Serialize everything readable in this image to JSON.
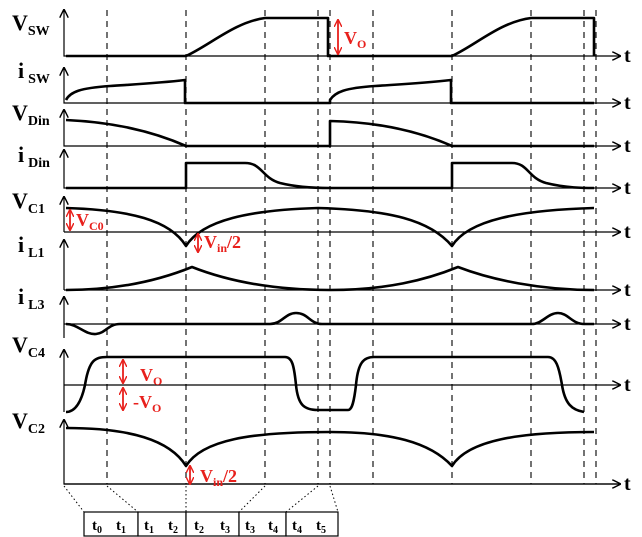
{
  "signals": [
    {
      "main": "V",
      "sub": "SW"
    },
    {
      "main": "i",
      "sub": "SW"
    },
    {
      "main": "V",
      "sub": "Din"
    },
    {
      "main": "i",
      "sub": "Din"
    },
    {
      "main": "V",
      "sub": "C1"
    },
    {
      "main": "i",
      "sub": "L1"
    },
    {
      "main": "i",
      "sub": "L3"
    },
    {
      "main": "V",
      "sub": "C4"
    },
    {
      "main": "V",
      "sub": "C2"
    }
  ],
  "time_axis_label": "t",
  "annotations": {
    "vo_sw": {
      "main": "V",
      "sub": "O"
    },
    "vc0": {
      "main": "V",
      "sub": "C0"
    },
    "vin2_c1": {
      "main": "V",
      "sub": "in",
      "tail": "/2"
    },
    "vo_c4": {
      "main": "V",
      "sub": "O"
    },
    "neg_vo_c4": {
      "main": "-V",
      "sub": "O"
    },
    "vin2_c2": {
      "main": "V",
      "sub": "in",
      "tail": "/2"
    }
  },
  "intervals": [
    {
      "main": "t",
      "sub": "0"
    },
    {
      "main": "t",
      "sub": "1"
    },
    {
      "main": "t",
      "sub": "1"
    },
    {
      "main": "t",
      "sub": "2"
    },
    {
      "main": "t",
      "sub": "2"
    },
    {
      "main": "t",
      "sub": "3"
    },
    {
      "main": "t",
      "sub": "3"
    },
    {
      "main": "t",
      "sub": "4"
    },
    {
      "main": "t",
      "sub": "4"
    },
    {
      "main": "t",
      "sub": "5"
    }
  ]
}
